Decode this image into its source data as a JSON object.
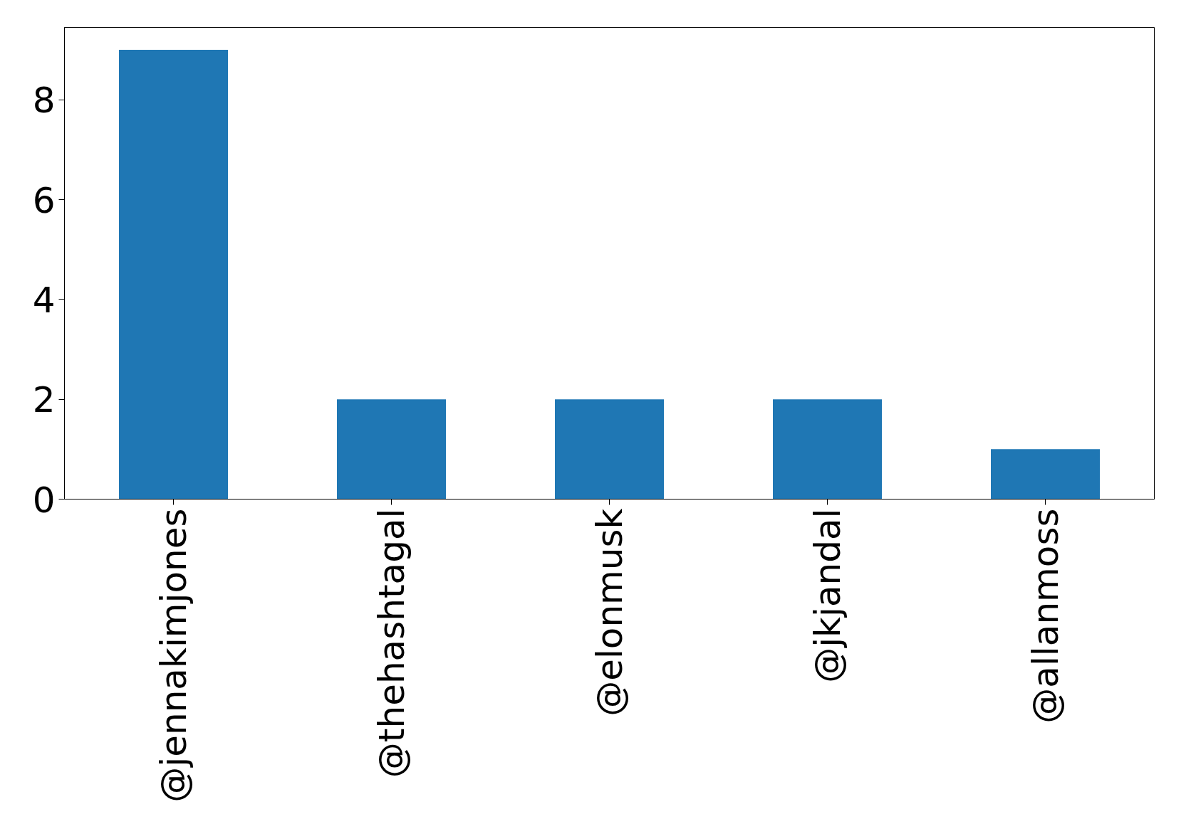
{
  "chart_data": {
    "type": "bar",
    "categories": [
      "@jennakimjones",
      "@thehashtagal",
      "@elonmusk",
      "@jkjandal",
      "@allanmoss"
    ],
    "values": [
      9,
      2,
      2,
      2,
      1
    ],
    "color": "#1f77b4",
    "ylim": [
      0,
      9.45
    ],
    "yticks": [
      0,
      2,
      4,
      6,
      8
    ],
    "grid": false
  }
}
